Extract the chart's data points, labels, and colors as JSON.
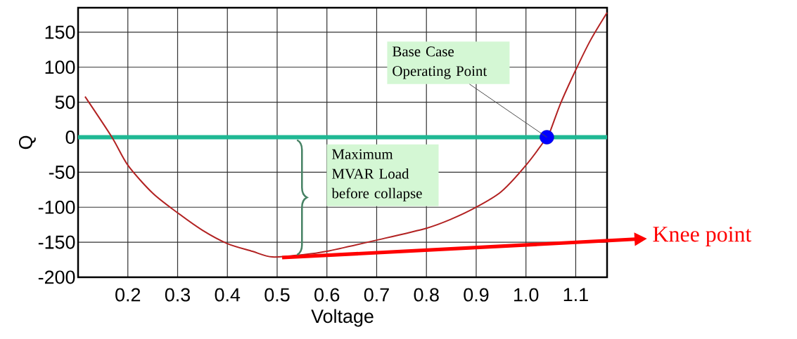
{
  "chart_data": {
    "type": "line",
    "xlabel": "Voltage",
    "ylabel": "Q",
    "xlim": [
      0.1,
      1.163
    ],
    "ylim": [
      -200,
      185
    ],
    "xticks": [
      0.2,
      0.3,
      0.4,
      0.5,
      0.6,
      0.7,
      0.8,
      0.9,
      {
        "value": 1.0,
        "label": "1.0"
      },
      1.1
    ],
    "yticks": [
      -200,
      -150,
      -100,
      -50,
      0,
      50,
      100,
      150
    ],
    "grid": true,
    "series": [
      {
        "color": "#b22222",
        "marker": "none",
        "x": [
          0.114,
          0.168,
          0.2,
          0.25,
          0.3,
          0.35,
          0.4,
          0.45,
          0.49,
          0.55,
          0.6,
          0.7,
          0.8,
          0.85,
          0.9,
          0.95,
          1.0,
          1.042,
          1.05,
          1.07,
          1.1,
          1.13,
          1.163
        ],
        "values": [
          58,
          0,
          -40,
          -80,
          -108,
          -133,
          -152,
          -163,
          -171,
          -168,
          -163,
          -147,
          -130,
          -117,
          -100,
          -78,
          -40,
          0,
          11,
          49,
          96,
          139,
          178
        ]
      },
      {
        "type": "scatter",
        "color": "#0000ff",
        "marker": "circle",
        "x": [
          1.042
        ],
        "values": [
          0
        ]
      }
    ],
    "ref_lines": [
      {
        "axis": "y",
        "value": 0,
        "color": "#1fb894"
      }
    ],
    "annotations": [
      {
        "text": "Base Case Operating Point",
        "x": 1.042,
        "y": 0
      },
      "Maximum MVAR Load before collapse",
      {
        "text": "Knee point",
        "x": 0.51,
        "y": -172
      }
    ]
  }
}
